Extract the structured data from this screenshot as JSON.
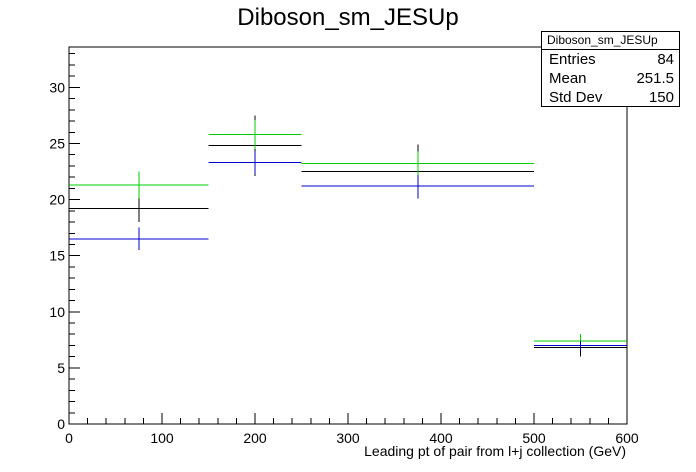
{
  "chart_data": {
    "type": "bar",
    "title": "Diboson_sm_JESUp",
    "xlabel": "Leading pt of pair from l+j collection (GeV)",
    "ylabel": "",
    "xlim": [
      0,
      600
    ],
    "ylim": [
      0,
      33.6
    ],
    "x_ticks": [
      0,
      100,
      200,
      300,
      400,
      500,
      600
    ],
    "y_ticks": [
      0,
      5,
      10,
      15,
      20,
      25,
      30
    ],
    "bin_edges": [
      0,
      150,
      250,
      500,
      600
    ],
    "series": [
      {
        "color": "#000000",
        "values": [
          19.2,
          24.8,
          22.5,
          6.8
        ],
        "errors": [
          1.2,
          2.7,
          2.4,
          0.8
        ]
      },
      {
        "color": "#00cc00",
        "values": [
          21.3,
          25.8,
          23.2,
          7.4
        ],
        "errors": [
          1.2,
          1.3,
          1.1,
          0.6
        ]
      },
      {
        "color": "#0000cc",
        "values": [
          16.5,
          23.3,
          21.2,
          7.0
        ],
        "errors": [
          1.0,
          1.0,
          1.0,
          0.4
        ]
      }
    ],
    "grid": false,
    "stats": {
      "name": "Diboson_sm_JESUp",
      "entries_label": "Entries",
      "entries": "84",
      "mean_label": "Mean",
      "mean": "251.5",
      "stddev_label": "Std Dev",
      "stddev": "150"
    }
  }
}
